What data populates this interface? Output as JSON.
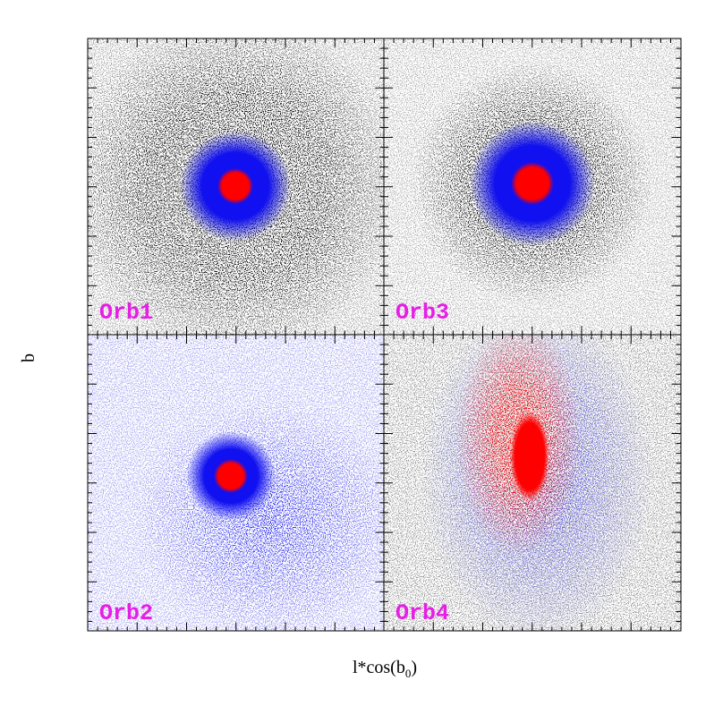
{
  "chart_data": [
    {
      "type": "scatter",
      "label": "Orb1"
    },
    {
      "type": "scatter",
      "label": "Orb3"
    },
    {
      "type": "scatter",
      "label": "Orb2"
    },
    {
      "type": "scatter",
      "label": "Orb4"
    }
  ],
  "y_label": "b",
  "x_label": {
    "text": "l*cos(b",
    "sub": "0",
    "end": ")"
  }
}
